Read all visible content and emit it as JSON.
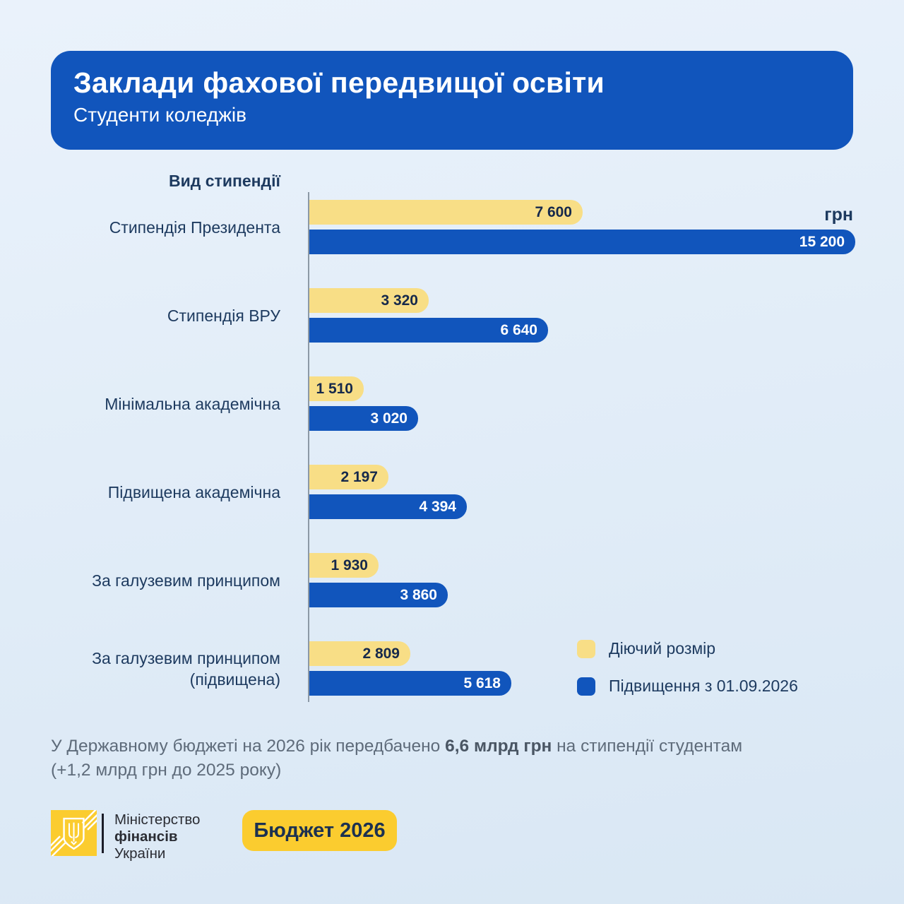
{
  "header": {
    "title": "Заклади фахової передвищої освіти",
    "subtitle": "Студенти коледжів"
  },
  "chart_data": {
    "type": "bar",
    "orientation": "horizontal",
    "title": "Вид стипендії",
    "unit": "грн",
    "xlim": [
      0,
      15200
    ],
    "grid": false,
    "legend_position": "bottom-right",
    "categories": [
      "Стипендія Президента",
      "Стипендія ВРУ",
      "Мінімальна академічна",
      "Підвищена академічна",
      "За галузевим принципом",
      "За галузевим принципом (підвищена)"
    ],
    "category_lines": [
      [
        "Стипендія Президента"
      ],
      [
        "Стипендія ВРУ"
      ],
      [
        "Мінімальна академічна"
      ],
      [
        "Підвищена академічна"
      ],
      [
        "За галузевим принципом"
      ],
      [
        "За галузевим принципом",
        "(підвищена)"
      ]
    ],
    "series": [
      {
        "name": "Діючий розмір",
        "color": "#F8DE86",
        "values": [
          7600,
          3320,
          1510,
          2197,
          1930,
          2809
        ],
        "labels": [
          "7 600",
          "3 320",
          "1 510",
          "2 197",
          "1 930",
          "2 809"
        ]
      },
      {
        "name": "Підвищення з 01.09.2026",
        "color": "#1155BC",
        "values": [
          15200,
          6640,
          3020,
          4394,
          3860,
          5618
        ],
        "labels": [
          "15 200",
          "6 640",
          "3 020",
          "4 394",
          "3 860",
          "5 618"
        ]
      }
    ]
  },
  "footnote": {
    "prefix": "У Державному бюджеті на 2026 рік передбачено ",
    "bold": "6,6 млрд грн",
    "suffix": " на стипендії студентам",
    "line2": "(+1,2 млрд грн до 2025 року)"
  },
  "footer": {
    "logo_lines": [
      "Міністерство",
      "фінансів",
      "України"
    ],
    "badge": "Бюджет 2026"
  },
  "colors": {
    "background": "#E2EDF8",
    "header_bg": "#1155BC",
    "bar_blue": "#1155BC",
    "bar_yellow": "#F8DE86",
    "accent_yellow": "#FBCC2F",
    "navy_text": "#1D3A5F",
    "axis_line": "#8C99A6"
  }
}
